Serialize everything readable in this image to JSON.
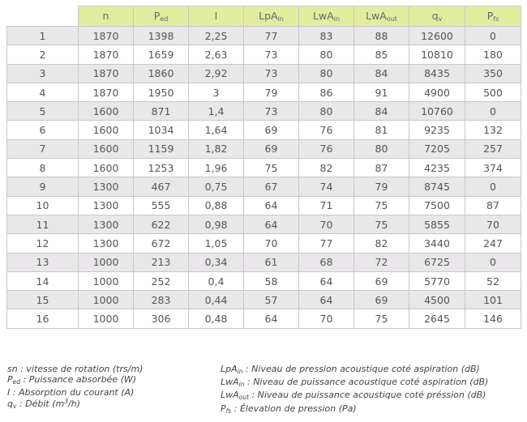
{
  "table": {
    "headers": [
      {
        "base": "n",
        "sub": ""
      },
      {
        "base": "P",
        "sub": "ed"
      },
      {
        "base": "I",
        "sub": ""
      },
      {
        "base": "LpA",
        "sub": "in"
      },
      {
        "base": "LwA",
        "sub": "in"
      },
      {
        "base": "LwA",
        "sub": "out"
      },
      {
        "base": "q",
        "sub": "v"
      },
      {
        "base": "P",
        "sub": "fs"
      }
    ],
    "rows": [
      [
        "1",
        "1870",
        "1398",
        "2,25",
        "77",
        "83",
        "88",
        "12600",
        "0"
      ],
      [
        "2",
        "1870",
        "1659",
        "2,63",
        "73",
        "80",
        "85",
        "10810",
        "180"
      ],
      [
        "3",
        "1870",
        "1860",
        "2,92",
        "73",
        "80",
        "84",
        "8435",
        "350"
      ],
      [
        "4",
        "1870",
        "1950",
        "3",
        "79",
        "86",
        "91",
        "4900",
        "500"
      ],
      [
        "5",
        "1600",
        "871",
        "1,4",
        "73",
        "80",
        "84",
        "10760",
        "0"
      ],
      [
        "6",
        "1600",
        "1034",
        "1,64",
        "69",
        "76",
        "81",
        "9235",
        "132"
      ],
      [
        "7",
        "1600",
        "1159",
        "1,82",
        "69",
        "76",
        "80",
        "7205",
        "257"
      ],
      [
        "8",
        "1600",
        "1253",
        "1,96",
        "75",
        "82",
        "87",
        "4235",
        "374"
      ],
      [
        "9",
        "1300",
        "467",
        "0,75",
        "67",
        "74",
        "79",
        "8745",
        "0"
      ],
      [
        "10",
        "1300",
        "555",
        "0,88",
        "64",
        "71",
        "75",
        "7500",
        "87"
      ],
      [
        "11",
        "1300",
        "622",
        "0,98",
        "64",
        "70",
        "75",
        "5855",
        "70"
      ],
      [
        "12",
        "1300",
        "672",
        "1,05",
        "70",
        "77",
        "82",
        "3440",
        "247"
      ],
      [
        "13",
        "1000",
        "213",
        "0,34",
        "61",
        "68",
        "72",
        "6725",
        "0"
      ],
      [
        "14",
        "1000",
        "252",
        "0,4",
        "58",
        "64",
        "69",
        "5770",
        "52"
      ],
      [
        "15",
        "1000",
        "283",
        "0,44",
        "57",
        "64",
        "69",
        "4500",
        "101"
      ],
      [
        "16",
        "1000",
        "306",
        "0,48",
        "64",
        "70",
        "75",
        "2645",
        "146"
      ]
    ]
  },
  "legend": {
    "left": [
      {
        "sym": "sn",
        "sub": "",
        "text": " : vitesse de rotation (trs/m)"
      },
      {
        "sym": "P",
        "sub": "ed",
        "text": " : Puissance absorbée (W)"
      },
      {
        "sym": "I",
        "sub": "",
        "text": " : Absorption du courant (A)"
      },
      {
        "sym": "q",
        "sub": "v",
        "text": " : Débit (m",
        "sup": "3",
        "tail": "/h)"
      }
    ],
    "right": [
      {
        "sym": "LpA",
        "sub": "in",
        "text": " : Niveau de pression acoustique coté aspiration (dB)"
      },
      {
        "sym": "LwA",
        "sub": "in",
        "text": " : Niveau de puissance acoustique coté aspiration (dB)"
      },
      {
        "sym": "LwA",
        "sub": "out",
        "text": " : Niveau de puissance acoustique coté préssion (dB)"
      },
      {
        "sym": "P",
        "sub": "fs",
        "text": " : Élevation de pression (Pa)"
      }
    ]
  }
}
